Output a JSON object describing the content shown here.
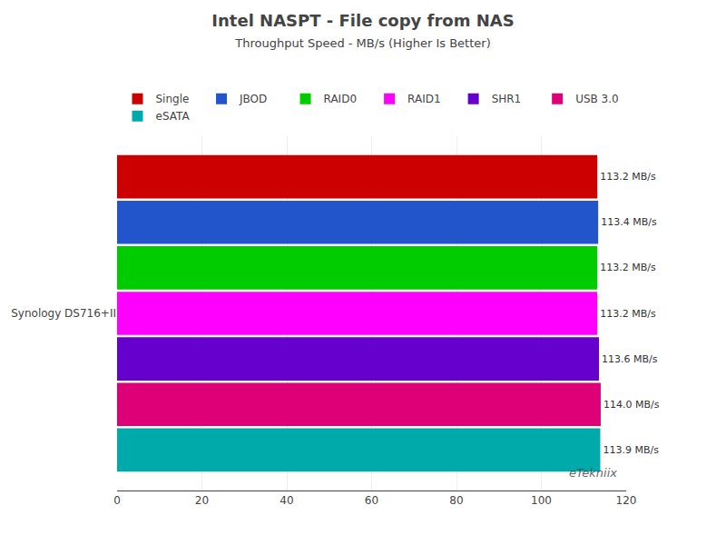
{
  "chart_data": {
    "type": "bar",
    "orientation": "horizontal",
    "title": "Intel NASPT - File copy from NAS",
    "subtitle": "Throughput Speed - MB/s (Higher Is Better)",
    "categories": [
      "Synology DS716+II"
    ],
    "series": [
      {
        "name": "Single",
        "color": "#CC0000",
        "values": [
          113.2
        ],
        "value_labels": [
          "113.2 MB/s"
        ]
      },
      {
        "name": "JBOD",
        "color": "#2255CC",
        "values": [
          113.4
        ],
        "value_labels": [
          "113.4 MB/s"
        ]
      },
      {
        "name": "RAID0",
        "color": "#00CC00",
        "values": [
          113.2
        ],
        "value_labels": [
          "113.2 MB/s"
        ]
      },
      {
        "name": "RAID1",
        "color": "#FF00FF",
        "values": [
          113.2
        ],
        "value_labels": [
          "113.2 MB/s"
        ]
      },
      {
        "name": "SHR1",
        "color": "#6600CC",
        "values": [
          113.6
        ],
        "value_labels": [
          "113.6 MB/s"
        ]
      },
      {
        "name": "USB 3.0",
        "color": "#DD0077",
        "values": [
          114.0
        ],
        "value_labels": [
          "114.0 MB/s"
        ]
      },
      {
        "name": "eSATA",
        "color": "#00AAAA",
        "values": [
          113.9
        ],
        "value_labels": [
          "113.9 MB/s"
        ]
      }
    ],
    "xlim": [
      0,
      120
    ],
    "xticks": [
      0,
      20,
      40,
      60,
      80,
      100,
      120
    ],
    "grid": true,
    "legend": "top",
    "data_labels": true,
    "annotations": [
      "eTekniix"
    ]
  }
}
